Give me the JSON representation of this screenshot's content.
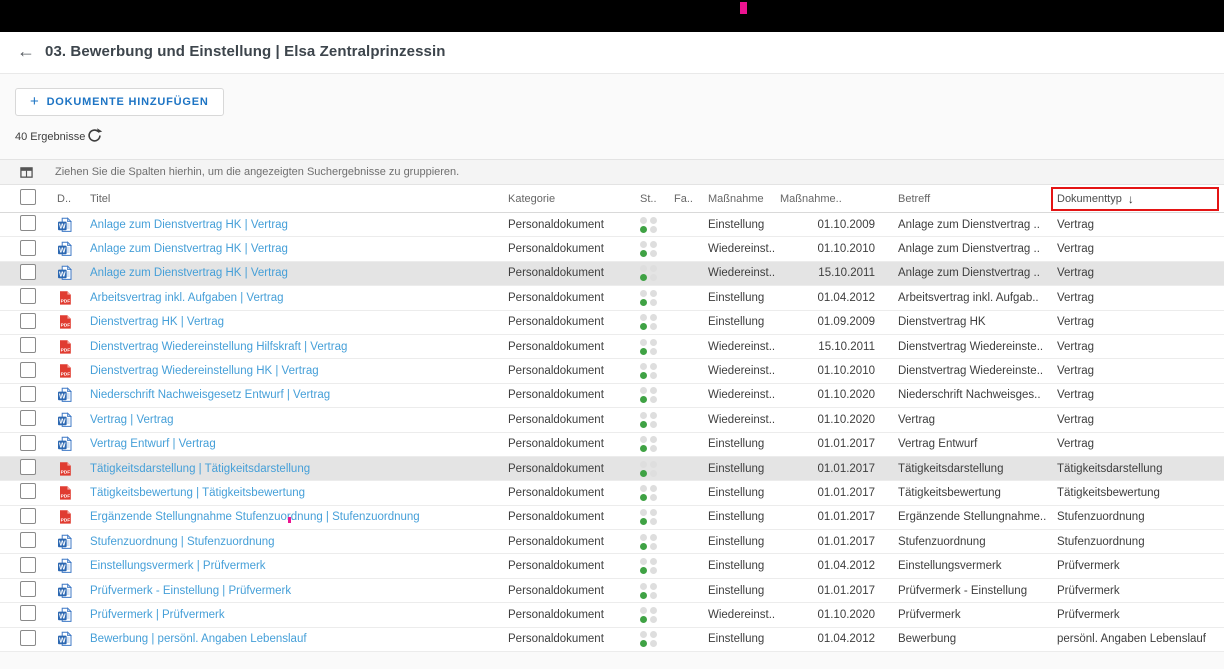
{
  "header": {
    "title": "03. Bewerbung und Einstellung | Elsa Zentralprinzessin",
    "back_icon": "←"
  },
  "toolbar": {
    "add_button_plus": "+",
    "add_button_label": "DOKUMENTE HINZUFÜGEN",
    "results_count": "40 Ergebnisse"
  },
  "group_bar": {
    "hint": "Ziehen Sie die Spalten hierhin, um die angezeigten Suchergebnisse zu gruppieren."
  },
  "table": {
    "columns": {
      "doc": "D..",
      "titel": "Titel",
      "kategorie": "Kategorie",
      "status": "St..",
      "fall": "Fa..",
      "massnahme": "Maßnahme",
      "massnahme_datum": "Maßnahme..",
      "betreff": "Betreff",
      "dokumenttyp": "Dokumenttyp"
    },
    "sort": {
      "column": "Dokumenttyp",
      "direction": "descending",
      "icon": "↓"
    },
    "status_dots": [
      "grey",
      "grey",
      "green",
      "grey"
    ],
    "rows": [
      {
        "icon": "word",
        "title": "Anlage zum Dienstvertrag HK | Vertrag",
        "category": "Personaldokument",
        "massnahme": "Einstellung",
        "datum": "01.10.2009",
        "betreff": "Anlage zum Dienstvertrag ..",
        "dokumenttyp": "Vertrag",
        "highlighted": false
      },
      {
        "icon": "word",
        "title": "Anlage zum Dienstvertrag HK | Vertrag",
        "category": "Personaldokument",
        "massnahme": "Wiedereinst..",
        "datum": "01.10.2010",
        "betreff": "Anlage zum Dienstvertrag ..",
        "dokumenttyp": "Vertrag",
        "highlighted": false
      },
      {
        "icon": "word",
        "title": "Anlage zum Dienstvertrag HK | Vertrag",
        "category": "Personaldokument",
        "massnahme": "Wiedereinst..",
        "datum": "15.10.2011",
        "betreff": "Anlage zum Dienstvertrag ..",
        "dokumenttyp": "Vertrag",
        "highlighted": true
      },
      {
        "icon": "pdf",
        "title": "Arbeitsvertrag inkl. Aufgaben | Vertrag",
        "category": "Personaldokument",
        "massnahme": "Einstellung",
        "datum": "01.04.2012",
        "betreff": "Arbeitsvertrag inkl. Aufgab..",
        "dokumenttyp": "Vertrag",
        "highlighted": false
      },
      {
        "icon": "pdf",
        "title": "Dienstvertrag HK | Vertrag",
        "category": "Personaldokument",
        "massnahme": "Einstellung",
        "datum": "01.09.2009",
        "betreff": "Dienstvertrag HK",
        "dokumenttyp": "Vertrag",
        "highlighted": false
      },
      {
        "icon": "pdf",
        "title": "Dienstvertrag Wiedereinstellung Hilfskraft | Vertrag",
        "category": "Personaldokument",
        "massnahme": "Wiedereinst..",
        "datum": "15.10.2011",
        "betreff": "Dienstvertrag Wiedereinste..",
        "dokumenttyp": "Vertrag",
        "highlighted": false
      },
      {
        "icon": "pdf",
        "title": "Dienstvertrag Wiedereinstellung HK | Vertrag",
        "category": "Personaldokument",
        "massnahme": "Wiedereinst..",
        "datum": "01.10.2010",
        "betreff": "Dienstvertrag Wiedereinste..",
        "dokumenttyp": "Vertrag",
        "highlighted": false
      },
      {
        "icon": "word",
        "title": "Niederschrift Nachweisgesetz Entwurf | Vertrag",
        "category": "Personaldokument",
        "massnahme": "Wiedereinst..",
        "datum": "01.10.2020",
        "betreff": "Niederschrift Nachweisges..",
        "dokumenttyp": "Vertrag",
        "highlighted": false
      },
      {
        "icon": "word",
        "title": "Vertrag | Vertrag",
        "category": "Personaldokument",
        "massnahme": "Wiedereinst..",
        "datum": "01.10.2020",
        "betreff": "Vertrag",
        "dokumenttyp": "Vertrag",
        "highlighted": false
      },
      {
        "icon": "word",
        "title": "Vertrag Entwurf | Vertrag",
        "category": "Personaldokument",
        "massnahme": "Einstellung",
        "datum": "01.01.2017",
        "betreff": "Vertrag Entwurf",
        "dokumenttyp": "Vertrag",
        "highlighted": false
      },
      {
        "icon": "pdf",
        "title": "Tätigkeitsdarstellung | Tätigkeitsdarstellung",
        "category": "Personaldokument",
        "massnahme": "Einstellung",
        "datum": "01.01.2017",
        "betreff": "Tätigkeitsdarstellung",
        "dokumenttyp": "Tätigkeitsdarstellung",
        "highlighted": true
      },
      {
        "icon": "pdf",
        "title": "Tätigkeitsbewertung | Tätigkeitsbewertung",
        "category": "Personaldokument",
        "massnahme": "Einstellung",
        "datum": "01.01.2017",
        "betreff": "Tätigkeitsbewertung",
        "dokumenttyp": "Tätigkeitsbewertung",
        "highlighted": false
      },
      {
        "icon": "pdf",
        "title": "Ergänzende Stellungnahme Stufenzuordnung | Stufenzuordnung",
        "category": "Personaldokument",
        "massnahme": "Einstellung",
        "datum": "01.01.2017",
        "betreff": "Ergänzende Stellungnahme..",
        "dokumenttyp": "Stufenzuordnung",
        "highlighted": false,
        "cursor": true
      },
      {
        "icon": "word",
        "title": "Stufenzuordnung | Stufenzuordnung",
        "category": "Personaldokument",
        "massnahme": "Einstellung",
        "datum": "01.01.2017",
        "betreff": "Stufenzuordnung",
        "dokumenttyp": "Stufenzuordnung",
        "highlighted": false
      },
      {
        "icon": "word",
        "title": "Einstellungsvermerk | Prüfvermerk",
        "category": "Personaldokument",
        "massnahme": "Einstellung",
        "datum": "01.04.2012",
        "betreff": "Einstellungsvermerk",
        "dokumenttyp": "Prüfvermerk",
        "highlighted": false
      },
      {
        "icon": "word",
        "title": "Prüfvermerk - Einstellung | Prüfvermerk",
        "category": "Personaldokument",
        "massnahme": "Einstellung",
        "datum": "01.01.2017",
        "betreff": "Prüfvermerk - Einstellung",
        "dokumenttyp": "Prüfvermerk",
        "highlighted": false
      },
      {
        "icon": "word",
        "title": "Prüfvermerk | Prüfvermerk",
        "category": "Personaldokument",
        "massnahme": "Wiedereinst..",
        "datum": "01.10.2020",
        "betreff": "Prüfvermerk",
        "dokumenttyp": "Prüfvermerk",
        "highlighted": false
      },
      {
        "icon": "word",
        "title": "Bewerbung | persönl. Angaben Lebenslauf",
        "category": "Personaldokument",
        "massnahme": "Einstellung",
        "datum": "01.04.2012",
        "betreff": "Bewerbung",
        "dokumenttyp": "persönl. Angaben Lebenslauf",
        "highlighted": false
      }
    ]
  },
  "colors": {
    "accent_blue": "#1d74c4",
    "link_blue": "#459fd8",
    "word_blue": "#2b67b1",
    "pdf_red": "#e03c31",
    "status_green": "#3fa244",
    "status_grey": "#dedede",
    "annotation_red": "#e41414",
    "cursor_magenta": "#ec1390",
    "row_highlight": "#e4e4e4",
    "topbar_black": "#000000"
  }
}
